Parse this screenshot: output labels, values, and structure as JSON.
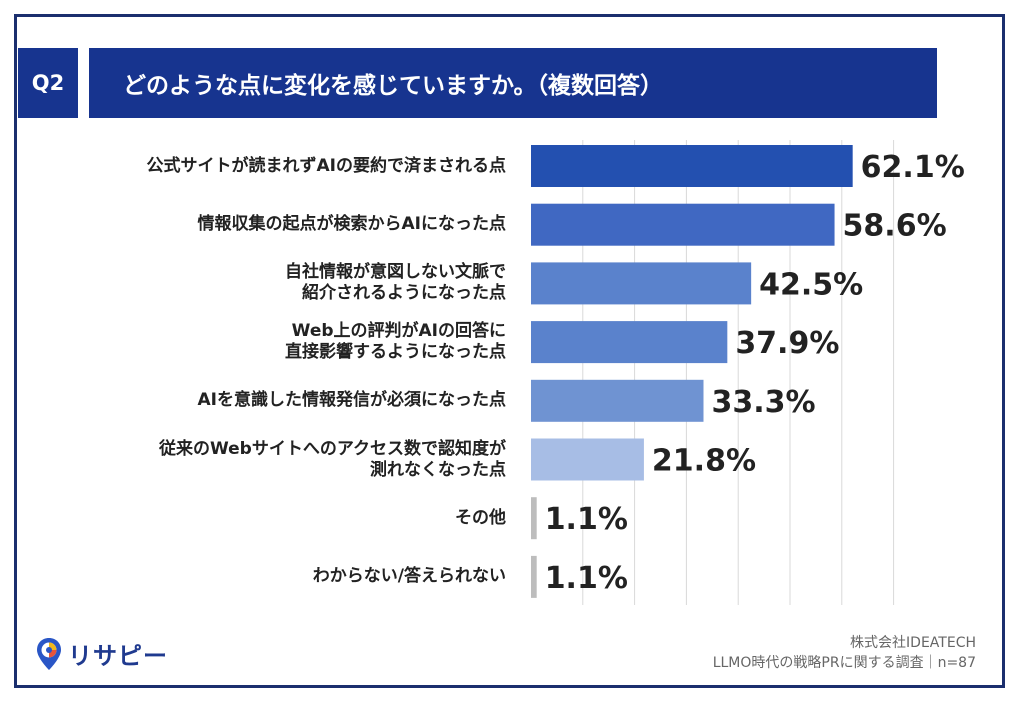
{
  "badge": "Q2",
  "question": "どのような点に変化を感じていますか。（複数回答）",
  "chart_data": {
    "type": "bar",
    "orientation": "horizontal",
    "categories": [
      "公式サイトが読まれずAIの要約で済まされる点",
      "情報収集の起点が検索からAIになった点",
      "自社情報が意図しない文脈で\n紹介されるようになった点",
      "Web上の評判がAIの回答に\n直接影響するようになった点",
      "AIを意識した情報発信が必須になった点",
      "従来のWebサイトへのアクセス数で認知度が\n測れなくなった点",
      "その他",
      "わからない/答えられない"
    ],
    "values": [
      62.1,
      58.6,
      42.5,
      37.9,
      33.3,
      21.8,
      1.1,
      1.1
    ],
    "value_labels": [
      "62.1%",
      "58.6%",
      "42.5%",
      "37.9%",
      "33.3%",
      "21.8%",
      "1.1%",
      "1.1%"
    ],
    "colors": [
      "#2350b0",
      "#4068c2",
      "#5a82cc",
      "#5a82cc",
      "#6f93d2",
      "#a7bde5",
      "#bdbdbd",
      "#bdbdbd"
    ],
    "xlim": [
      0,
      70
    ],
    "grid": true
  },
  "footer": {
    "company": "株式会社IDEATECH",
    "survey": "LLMO時代の戦略PRに関する調査｜n=87"
  },
  "logo": {
    "text": "リサピー",
    "icon": "map-pin-icon"
  }
}
